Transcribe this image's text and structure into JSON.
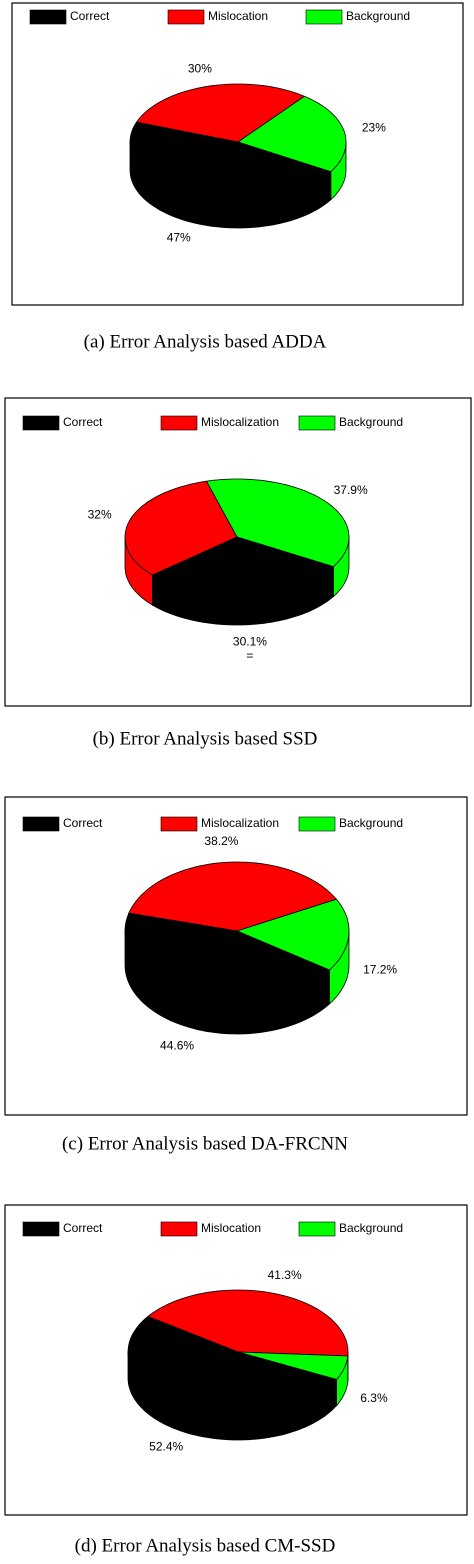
{
  "chart_data": [
    {
      "type": "pie",
      "legend": "top",
      "caption": "(a) Error Analysis based ADDA",
      "categories": [
        "Correct",
        "Mislocation",
        "Background"
      ],
      "values": [
        47,
        30,
        23
      ],
      "value_labels": [
        "47%",
        "30%",
        "23%"
      ],
      "colors": [
        "#000000",
        "#ff0000",
        "#00ff00"
      ]
    },
    {
      "type": "pie",
      "legend": "top",
      "caption": "(b) Error Analysis based SSD",
      "categories": [
        "Correct",
        "Mislocalization",
        "Background"
      ],
      "values": [
        30.1,
        32,
        37.9
      ],
      "value_labels": [
        "30.1%",
        "32%",
        "37.9%"
      ],
      "colors": [
        "#000000",
        "#ff0000",
        "#00ff00"
      ],
      "annotation": "="
    },
    {
      "type": "pie",
      "legend": "top",
      "caption": "(c) Error Analysis based DA-FRCNN",
      "categories": [
        "Correct",
        "Mislocalization",
        "Background"
      ],
      "values": [
        44.6,
        38.2,
        17.2
      ],
      "value_labels": [
        "44.6%",
        "38.2%",
        "17.2%"
      ],
      "colors": [
        "#000000",
        "#ff0000",
        "#00ff00"
      ]
    },
    {
      "type": "pie",
      "legend": "top",
      "caption": "(d) Error Analysis based CM-SSD",
      "categories": [
        "Correct",
        "Mislocation",
        "Background"
      ],
      "values": [
        52.4,
        41.3,
        6.3
      ],
      "value_labels": [
        "52.4%",
        "41.3%",
        "6.3%"
      ],
      "colors": [
        "#000000",
        "#ff0000",
        "#00ff00"
      ]
    }
  ]
}
